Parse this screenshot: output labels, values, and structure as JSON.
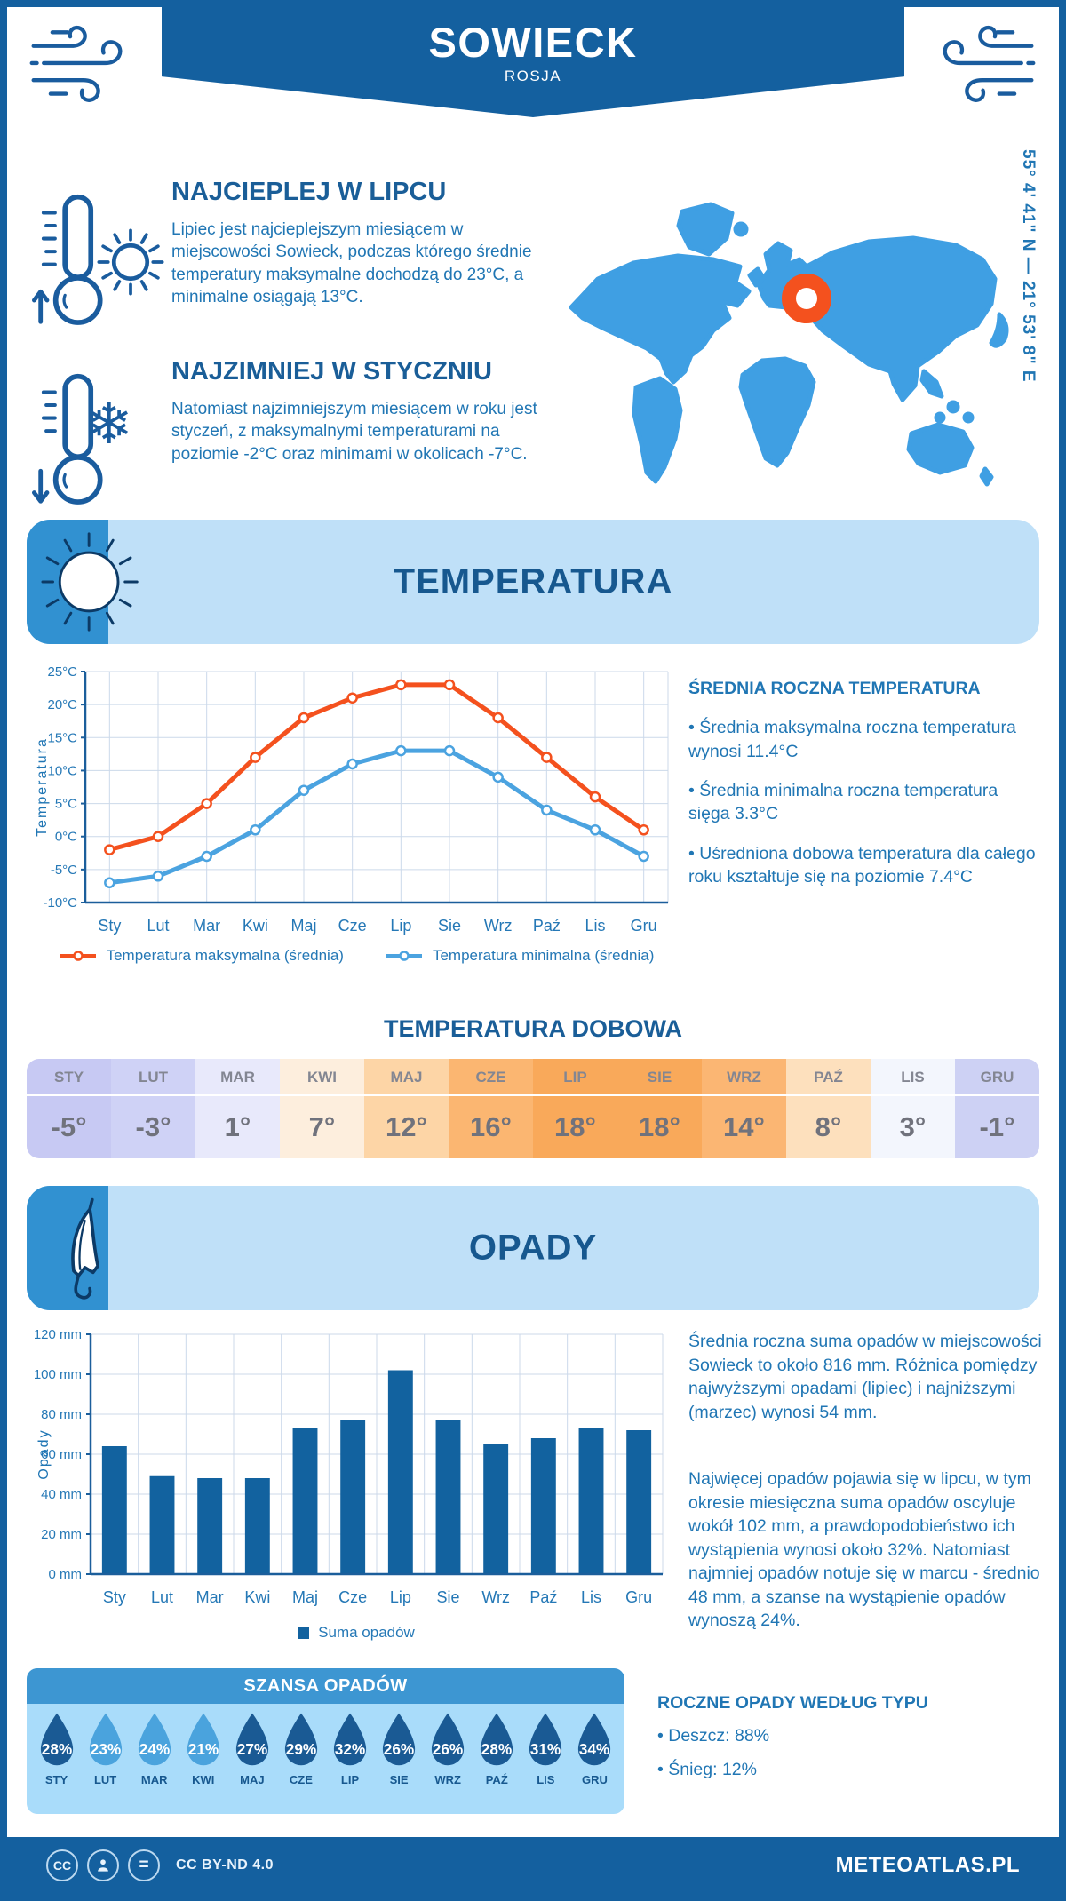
{
  "meta": {
    "title": "SOWIECK",
    "country": "ROSJA",
    "coordinates": "55° 4' 41\" N — 21° 53' 8\" E"
  },
  "highlights": {
    "warm": {
      "title": "NAJCIEPLEJ W LIPCU",
      "text": "Lipiec jest najcieplejszym miesiącem w miejscowości Sowieck, podczas którego średnie temperatury maksymalne dochodzą do 23°C, a minimalne osiągają 13°C."
    },
    "cold": {
      "title": "NAJZIMNIEJ W STYCZNIU",
      "text": "Natomiast najzimniejszym miesiącem w roku jest styczeń, z maksymalnymi temperaturami na poziomie -2°C oraz minimami w okolicach -7°C."
    }
  },
  "temperature_section": {
    "banner_title": "TEMPERATURA",
    "annual": {
      "title": "ŚREDNIA ROCZNA TEMPERATURA",
      "bullets": [
        "• Średnia maksymalna roczna temperatura wynosi 11.4°C",
        "• Średnia minimalna roczna temperatura sięga 3.3°C",
        "• Uśredniona dobowa temperatura dla całego roku kształtuje się na poziomie 7.4°C"
      ]
    },
    "daily": {
      "title": "TEMPERATURA DOBOWA",
      "months": [
        "STY",
        "LUT",
        "MAR",
        "KWI",
        "MAJ",
        "CZE",
        "LIP",
        "SIE",
        "WRZ",
        "PAŹ",
        "LIS",
        "GRU"
      ],
      "values": [
        "-5°",
        "-3°",
        "1°",
        "7°",
        "12°",
        "16°",
        "18°",
        "18°",
        "14°",
        "8°",
        "3°",
        "-1°"
      ],
      "colors": [
        "#c7c9f3",
        "#cfd2f6",
        "#e8e9fb",
        "#fdeedd",
        "#fdd5a6",
        "#fbb671",
        "#f9a95a",
        "#f9a95a",
        "#fbb673",
        "#fde0bd",
        "#f3f6fd",
        "#cdd1f4"
      ]
    }
  },
  "precipitation_section": {
    "banner_title": "OPADY",
    "text1": "Średnia roczna suma opadów w miejscowości Sowieck to około 816 mm. Różnica pomiędzy najwyższymi opadami (lipiec) i najniższymi (marzec) wynosi 54 mm.",
    "text2": "Najwięcej opadów pojawia się w lipcu, w tym okresie miesięczna suma opadów oscyluje wokół 102 mm, a prawdopodobieństwo ich wystąpienia wynosi około 32%. Natomiast najmniej opadów notuje się w marcu - średnio 48 mm, a szanse na wystąpienie opadów wynoszą 24%.",
    "chance": {
      "title": "SZANSA OPADÓW",
      "months": [
        "STY",
        "LUT",
        "MAR",
        "KWI",
        "MAJ",
        "CZE",
        "LIP",
        "SIE",
        "WRZ",
        "PAŹ",
        "LIS",
        "GRU"
      ],
      "values": [
        "28%",
        "23%",
        "24%",
        "21%",
        "27%",
        "29%",
        "32%",
        "26%",
        "26%",
        "28%",
        "31%",
        "34%"
      ],
      "variant": [
        "dark",
        "light",
        "light",
        "light",
        "dark",
        "dark",
        "dark",
        "dark",
        "dark",
        "dark",
        "dark",
        "dark"
      ]
    },
    "type": {
      "title": "ROCZNE OPADY WEDŁUG TYPU",
      "bullets": [
        "• Deszcz: 88%",
        "• Śnieg: 12%"
      ]
    }
  },
  "chart_data": [
    {
      "type": "line",
      "title": "",
      "categories": [
        "Sty",
        "Lut",
        "Mar",
        "Kwi",
        "Maj",
        "Cze",
        "Lip",
        "Sie",
        "Wrz",
        "Paź",
        "Lis",
        "Gru"
      ],
      "series": [
        {
          "name": "Temperatura maksymalna (średnia)",
          "color": "#f4511e",
          "values": [
            -2,
            0,
            5,
            12,
            18,
            21,
            23,
            23,
            18,
            12,
            6,
            1
          ]
        },
        {
          "name": "Temperatura minimalna (średnia)",
          "color": "#4ba3e0",
          "values": [
            -7,
            -6,
            -3,
            1,
            7,
            11,
            13,
            13,
            9,
            4,
            1,
            -3
          ]
        }
      ],
      "xlabel": "",
      "ylabel": "Temperatura",
      "ylim": [
        -10,
        25
      ],
      "ytick_step": 5,
      "ytick_suffix": "°C",
      "grid": true,
      "legend_position": "bottom"
    },
    {
      "type": "bar",
      "title": "",
      "categories": [
        "Sty",
        "Lut",
        "Mar",
        "Kwi",
        "Maj",
        "Cze",
        "Lip",
        "Sie",
        "Wrz",
        "Paź",
        "Lis",
        "Gru"
      ],
      "values": [
        64,
        49,
        48,
        48,
        73,
        77,
        102,
        77,
        65,
        68,
        73,
        72
      ],
      "xlabel": "",
      "ylabel": "Opady",
      "ylim": [
        0,
        120
      ],
      "ytick_step": 20,
      "ytick_suffix": " mm",
      "grid": true,
      "legend": "Suma opadów",
      "bar_color": "#12629f",
      "legend_position": "bottom"
    }
  ],
  "colors": {
    "primary_dark": "#14609f",
    "heading_blue": "#1a5e98",
    "body_blue": "#2076b4",
    "banner_bg": "#bfe0f8",
    "banner_strip": "#3191d1",
    "accent_orange": "#f4511e",
    "map_blue": "#3f9fe3",
    "chance_header": "#3d96d2",
    "chance_bg": "#a9dcfa",
    "drop_dark": "#1a5a94",
    "drop_light": "#4aa3dd",
    "bar_blue": "#12629f"
  },
  "footer": {
    "license": "CC BY-ND 4.0",
    "site": "METEOATLAS.PL"
  }
}
